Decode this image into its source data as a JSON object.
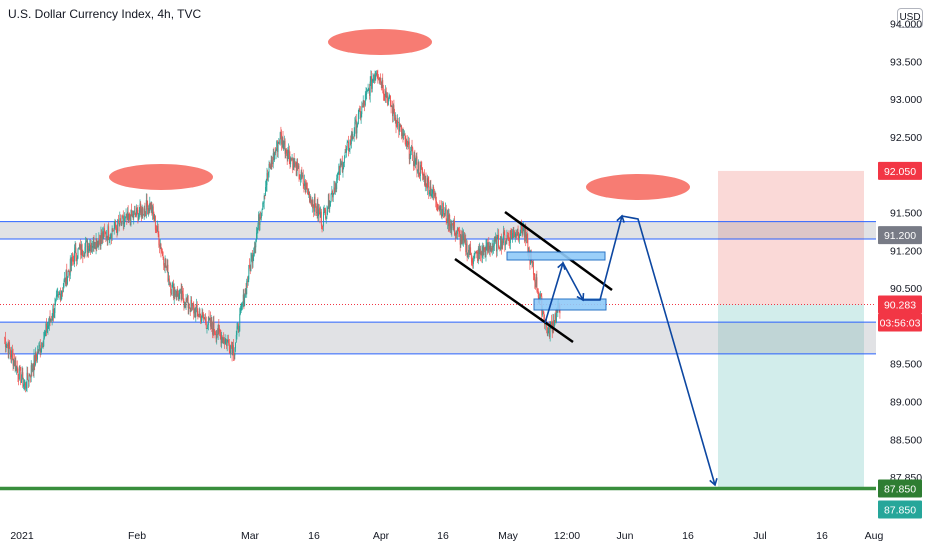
{
  "header": {
    "title": "U.S. Dollar Currency Index, 4h, TVC",
    "currency": "USD"
  },
  "colors": {
    "bull": "#26a69a",
    "bear": "#ef5350",
    "zone_line": "#2962ff",
    "arrow": "#0d47a1",
    "highlight": "#f77c73",
    "target_line": "#388e3c",
    "stop_fill": "#f9cfcd",
    "profit_fill": "#cdebe9"
  },
  "chart_data": {
    "type": "candlestick",
    "title": "U.S. Dollar Currency Index, 4h, TVC",
    "ylim": [
      87.7,
      94.5
    ],
    "yticks": [
      94.0,
      93.5,
      93.0,
      92.5,
      92.0,
      91.5,
      91.0,
      90.5,
      90.0,
      89.5,
      89.0,
      88.5,
      88.0
    ],
    "ytick_labels": [
      "94.000",
      "93.500",
      "93.000",
      "92.500",
      "92.050",
      "91.500",
      "91.200",
      "90.500",
      "90.283",
      "89.500",
      "89.000",
      "88.500",
      "87.850"
    ],
    "xticks": [
      "2021",
      "Feb",
      "Mar",
      "16",
      "Apr",
      "16",
      "May",
      "12:00",
      "Jun",
      "16",
      "Jul",
      "16",
      "Aug"
    ],
    "key_points": [
      {
        "date": "2021-01-01",
        "value": 89.85
      },
      {
        "date": "2021-01-06",
        "value": 89.2
      },
      {
        "date": "2021-01-18",
        "value": 90.95
      },
      {
        "date": "2021-02-05",
        "value": 91.6
      },
      {
        "date": "2021-02-10",
        "value": 90.5
      },
      {
        "date": "2021-02-25",
        "value": 89.7
      },
      {
        "date": "2021-03-05",
        "value": 92.0
      },
      {
        "date": "2021-03-08",
        "value": 92.5
      },
      {
        "date": "2021-03-18",
        "value": 91.4
      },
      {
        "date": "2021-03-31",
        "value": 93.4
      },
      {
        "date": "2021-04-07",
        "value": 92.4
      },
      {
        "date": "2021-04-15",
        "value": 91.6
      },
      {
        "date": "2021-04-23",
        "value": 90.9
      },
      {
        "date": "2021-05-05",
        "value": 91.3
      },
      {
        "date": "2021-05-11",
        "value": 89.9
      },
      {
        "date": "2021-05-14",
        "value": 90.283
      }
    ],
    "levels": {
      "last_price": 90.283,
      "countdown": "03:56:03",
      "stop_loss": 92.05,
      "target": 87.85,
      "resistance_zone": [
        91.15,
        91.38
      ],
      "support_zone": [
        89.63,
        90.05
      ]
    },
    "price_labels": [
      {
        "value": 92.05,
        "text": "92.050",
        "color": "#f23645"
      },
      {
        "value": 91.2,
        "text": "91.200",
        "color": "#787b86"
      },
      {
        "value": 90.283,
        "text": "90.283",
        "color": "#f23645"
      },
      {
        "value": 87.85,
        "text": "87.850",
        "color": "#2e7d32"
      },
      {
        "value": 87.85,
        "text": "87.850",
        "color": "#26a69a"
      }
    ]
  }
}
